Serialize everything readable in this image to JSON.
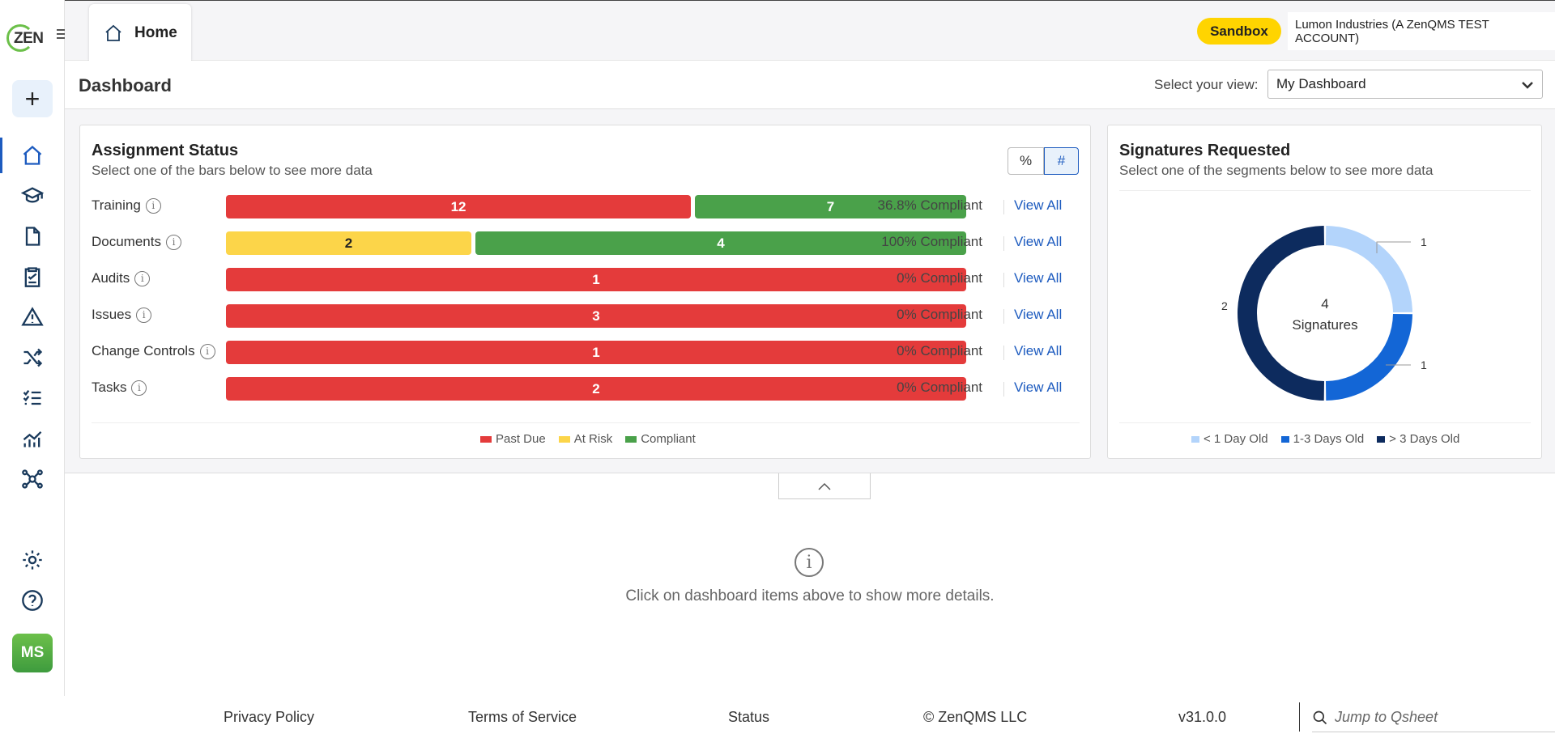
{
  "app": {
    "logo_text": "ZEN",
    "user_initials": "MS"
  },
  "topbar": {
    "home_tab_label": "Home",
    "env_badge": "Sandbox",
    "account_name": "Lumon Industries (A ZenQMS TEST ACCOUNT)"
  },
  "header": {
    "title": "Dashboard",
    "view_label": "Select your view:",
    "view_value": "My Dashboard"
  },
  "assignment": {
    "title": "Assignment Status",
    "subtitle": "Select one of the bars below to see more data",
    "toggle_pct": "%",
    "toggle_num": "#",
    "view_all": "View All",
    "rows": [
      {
        "label": "Training",
        "past_due": 12,
        "at_risk": 0,
        "compliant": 7,
        "past_due_text": "12",
        "at_risk_text": "",
        "compliant_text": "7",
        "compliance": "36.8% Compliant"
      },
      {
        "label": "Documents",
        "past_due": 0,
        "at_risk": 2,
        "compliant": 4,
        "past_due_text": "",
        "at_risk_text": "2",
        "compliant_text": "4",
        "compliance": "100% Compliant"
      },
      {
        "label": "Audits",
        "past_due": 1,
        "at_risk": 0,
        "compliant": 0,
        "past_due_text": "1",
        "at_risk_text": "",
        "compliant_text": "",
        "compliance": "0% Compliant"
      },
      {
        "label": "Issues",
        "past_due": 3,
        "at_risk": 0,
        "compliant": 0,
        "past_due_text": "3",
        "at_risk_text": "",
        "compliant_text": "",
        "compliance": "0% Compliant"
      },
      {
        "label": "Change Controls",
        "past_due": 1,
        "at_risk": 0,
        "compliant": 0,
        "past_due_text": "1",
        "at_risk_text": "",
        "compliant_text": "",
        "compliance": "0% Compliant"
      },
      {
        "label": "Tasks",
        "past_due": 2,
        "at_risk": 0,
        "compliant": 0,
        "past_due_text": "2",
        "at_risk_text": "",
        "compliant_text": "",
        "compliance": "0% Compliant"
      }
    ],
    "legend": [
      "Past Due",
      "At Risk",
      "Compliant"
    ],
    "colors": {
      "past_due": "#e43b3b",
      "at_risk": "#fcd549",
      "compliant": "#4aa14a"
    }
  },
  "signatures": {
    "title": "Signatures Requested",
    "subtitle": "Select one of the segments below to see more data",
    "center_count": "4",
    "center_label": "Signatures",
    "legend": [
      "< 1 Day Old",
      "1-3 Days Old",
      "> 3 Days Old"
    ]
  },
  "chart_data": {
    "type": "pie",
    "categories": [
      "< 1 Day Old",
      "1-3 Days Old",
      "> 3 Days Old"
    ],
    "values": [
      1,
      1,
      2
    ],
    "value_labels": [
      "1",
      "1",
      "2"
    ],
    "colors": [
      "#b3d4fb",
      "#1366d6",
      "#0d2b5e"
    ],
    "donut": true
  },
  "details": {
    "empty_text": "Click on dashboard items above to show more details."
  },
  "footer": {
    "privacy": "Privacy Policy",
    "terms": "Terms of Service",
    "status": "Status",
    "copyright": "© ZenQMS LLC",
    "version": "v31.0.0",
    "jump_placeholder": "Jump to Qsheet"
  }
}
